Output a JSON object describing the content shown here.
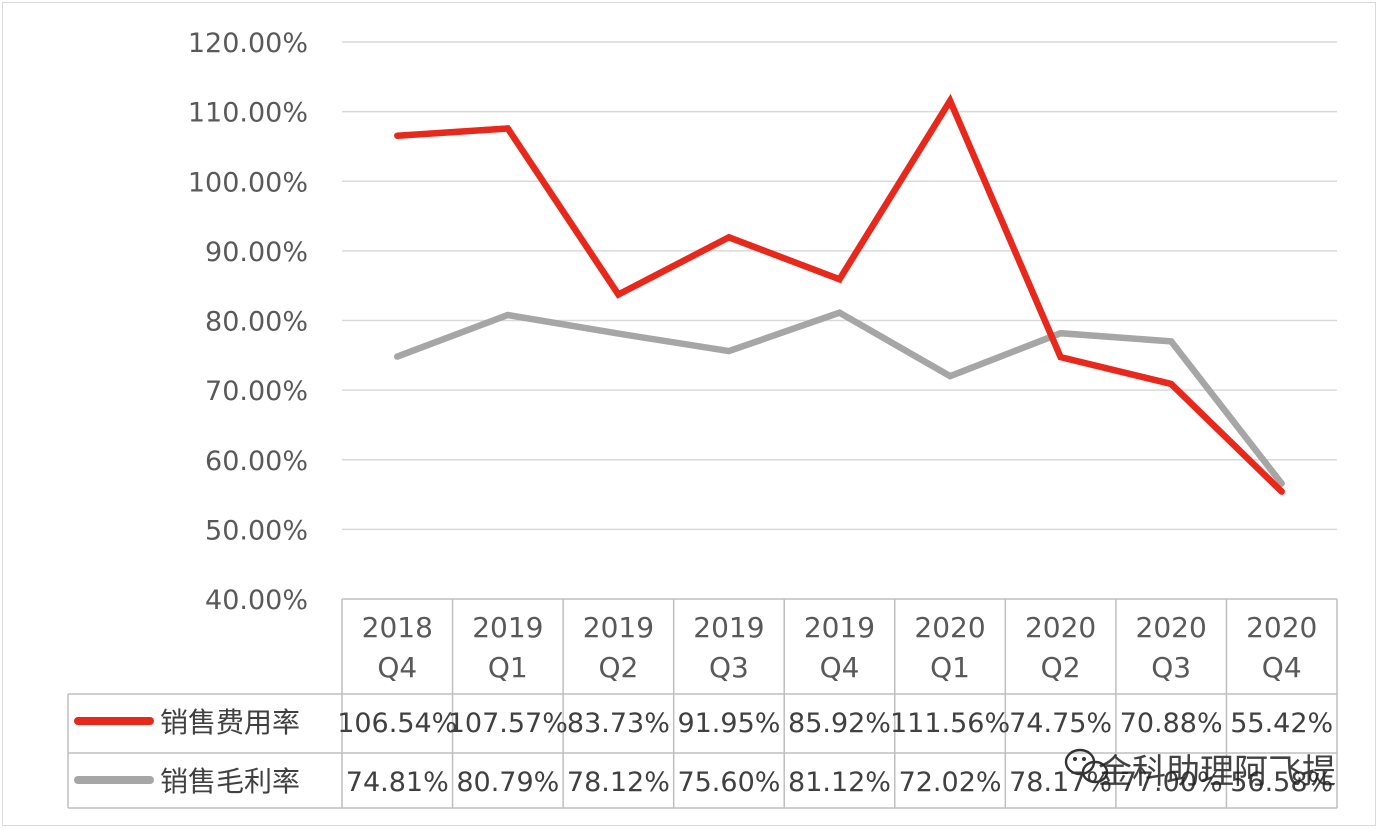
{
  "chart_data": {
    "type": "line",
    "title": "",
    "xlabel": "",
    "ylabel": "",
    "ylim": [
      0.4,
      1.2
    ],
    "y_ticks": [
      "40.00%",
      "50.00%",
      "60.00%",
      "70.00%",
      "80.00%",
      "90.00%",
      "100.00%",
      "110.00%",
      "120.00%"
    ],
    "y_tick_values": [
      0.4,
      0.5,
      0.6,
      0.7,
      0.8,
      0.9,
      1.0,
      1.1,
      1.2
    ],
    "grid": true,
    "legend_placement": "data-table-left",
    "categories": [
      {
        "year": "2018",
        "quarter": "Q4"
      },
      {
        "year": "2019",
        "quarter": "Q1"
      },
      {
        "year": "2019",
        "quarter": "Q2"
      },
      {
        "year": "2019",
        "quarter": "Q3"
      },
      {
        "year": "2019",
        "quarter": "Q4"
      },
      {
        "year": "2020",
        "quarter": "Q1"
      },
      {
        "year": "2020",
        "quarter": "Q2"
      },
      {
        "year": "2020",
        "quarter": "Q3"
      },
      {
        "year": "2020",
        "quarter": "Q4"
      }
    ],
    "series": [
      {
        "name": "销售费用率",
        "color": "#e8281a",
        "values": [
          1.0654,
          1.0757,
          0.8373,
          0.9195,
          0.8592,
          1.1156,
          0.7475,
          0.7088,
          0.5542
        ],
        "labels": [
          "106.54%",
          "107.57%",
          "83.73%",
          "91.95%",
          "85.92%",
          "111.56%",
          "74.75%",
          "70.88%",
          "55.42%"
        ]
      },
      {
        "name": "销售毛利率",
        "color": "#a6a6a6",
        "values": [
          0.7481,
          0.8079,
          0.7812,
          0.756,
          0.8112,
          0.7202,
          0.7817,
          0.77,
          0.5658
        ],
        "labels": [
          "74.81%",
          "80.79%",
          "78.12%",
          "75.60%",
          "81.12%",
          "72.02%",
          "78.17%",
          "77.00%",
          "56.58%"
        ]
      }
    ]
  },
  "watermark": {
    "text": "金科助理阿飞提",
    "icon": "wechat-icon"
  }
}
